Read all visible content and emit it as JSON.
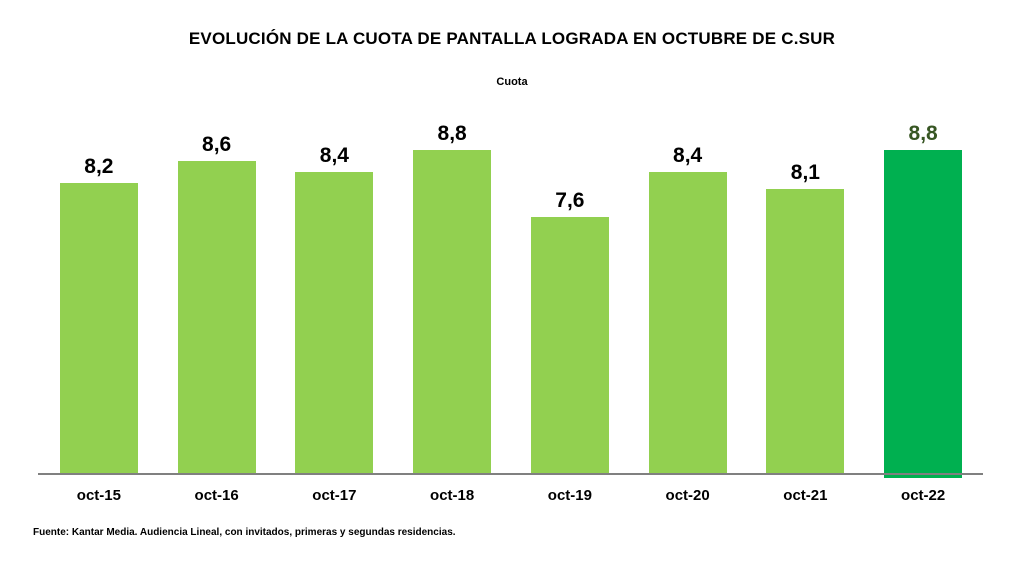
{
  "colors": {
    "bar": "#92D050",
    "bar_highlight": "#00B050",
    "label": "#000000",
    "label_highlight": "#375623",
    "axis": "#808080",
    "background": "#FFFFFF"
  },
  "chart_data": {
    "type": "bar",
    "title": "EVOLUCIÓN DE LA CUOTA DE PANTALLA LOGRADA EN OCTUBRE DE C.SUR",
    "legend": "Cuota",
    "xlabel": "",
    "ylabel": "",
    "categories": [
      "oct-15",
      "oct-16",
      "oct-17",
      "oct-18",
      "oct-19",
      "oct-20",
      "oct-21",
      "oct-22"
    ],
    "values": [
      8.2,
      8.6,
      8.4,
      8.8,
      7.6,
      8.4,
      8.1,
      8.8
    ],
    "labels": [
      "8,2",
      "8,6",
      "8,4",
      "8,8",
      "7,6",
      "8,4",
      "8,1",
      "8,8"
    ],
    "highlight_index": 7,
    "ylim": [
      3,
      9.9
    ],
    "grid": false,
    "legend_position": "top-center",
    "source": "Fuente: Kantar Media. Audiencia Lineal, con invitados, primeras y segundas residencias."
  }
}
